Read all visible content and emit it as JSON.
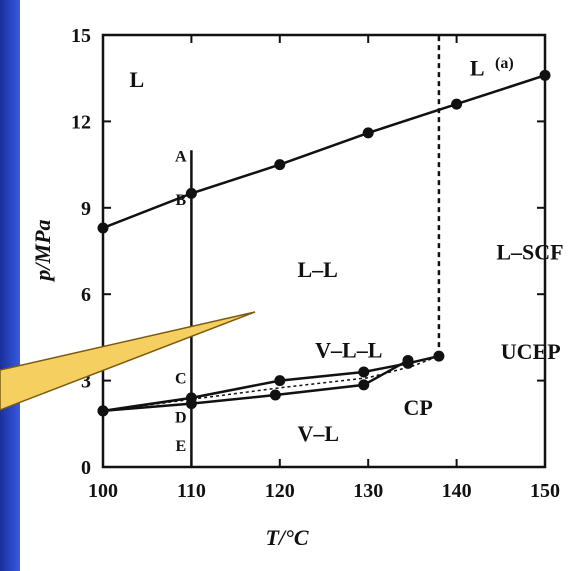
{
  "chart_data": {
    "type": "line",
    "panel_label": "(a)",
    "xlabel": "T/°C",
    "ylabel": "p/MPa",
    "x_ticks": [
      "100",
      "110",
      "120",
      "130",
      "140",
      "150"
    ],
    "y_ticks": [
      "0",
      "3",
      "6",
      "9",
      "12",
      "15"
    ],
    "xlim": [
      100,
      150
    ],
    "ylim": [
      0,
      15
    ],
    "grid": false,
    "series": [
      {
        "style": "solid-markers",
        "x": [
          100,
          110,
          120,
          130,
          140,
          150
        ],
        "y": [
          8.3,
          9.5,
          10.5,
          11.6,
          12.6,
          13.6
        ]
      },
      {
        "style": "solid-markers",
        "x": [
          100,
          110,
          120,
          129.5,
          134.5,
          138
        ],
        "y": [
          1.95,
          2.4,
          3.0,
          3.3,
          3.6,
          3.85
        ]
      },
      {
        "style": "solid-markers",
        "x": [
          100,
          110,
          119.5,
          129.5,
          134.5
        ],
        "y": [
          1.95,
          2.2,
          2.5,
          2.85,
          3.7
        ]
      },
      {
        "style": "dashed",
        "x": [
          100,
          110,
          120,
          130,
          135,
          138
        ],
        "y": [
          1.95,
          2.35,
          2.75,
          3.1,
          3.5,
          3.85
        ]
      },
      {
        "style": "dashed-vertical",
        "x": [
          138,
          138
        ],
        "y": [
          3.85,
          15
        ]
      },
      {
        "style": "vertical-line",
        "x": [
          110,
          110
        ],
        "y": [
          0,
          11
        ]
      }
    ],
    "region_labels": [
      {
        "text": "L",
        "x": 103,
        "y": 13.2
      },
      {
        "text": "L",
        "x": 141.5,
        "y": 13.6
      },
      {
        "text": "L–L",
        "x": 122,
        "y": 6.6
      },
      {
        "text": "L–SCF",
        "x": 144.5,
        "y": 7.2
      },
      {
        "text": "V–L–L",
        "x": 124,
        "y": 3.8
      },
      {
        "text": "V–L",
        "x": 122,
        "y": 0.9
      },
      {
        "text": "UCEP",
        "x": 145,
        "y": 3.75
      },
      {
        "text": "CP",
        "x": 134,
        "y": 1.8
      }
    ],
    "point_labels": [
      {
        "text": "A",
        "x": 108.8,
        "y": 10.6
      },
      {
        "text": "B",
        "x": 108.8,
        "y": 9.1
      },
      {
        "text": "C",
        "x": 108.8,
        "y": 2.9
      },
      {
        "text": "D",
        "x": 108.8,
        "y": 1.55
      },
      {
        "text": "E",
        "x": 108.8,
        "y": 0.55
      }
    ]
  },
  "colors": {
    "background": "#10208a",
    "callout_fill": "#f5d060",
    "ink": "#111111"
  }
}
